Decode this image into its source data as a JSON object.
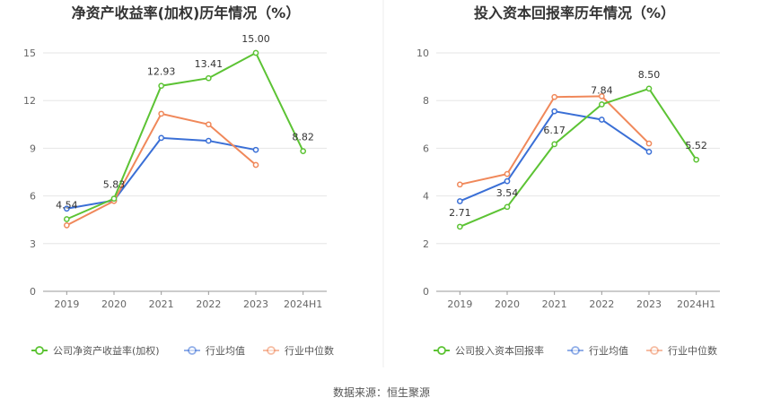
{
  "source_text": "数据来源：恒生聚源",
  "chart_data": [
    {
      "type": "line",
      "title": "净资产收益率(加权)历年情况（%）",
      "categories": [
        "2019",
        "2020",
        "2021",
        "2022",
        "2023",
        "2024H1"
      ],
      "ylim": [
        0,
        15
      ],
      "yticks": [
        0,
        3,
        6,
        9,
        12,
        15
      ],
      "grid": true,
      "legend_position": "bottom",
      "series": [
        {
          "name": "公司净资产收益率(加权)",
          "color": "#5cc334",
          "values": [
            4.54,
            5.83,
            12.93,
            13.41,
            15.0,
            8.82
          ],
          "labels": [
            "4.54",
            "5.83",
            "12.93",
            "13.41",
            "15.00",
            "8.82"
          ]
        },
        {
          "name": "行业均值",
          "color": "#3a6fd6",
          "values": [
            5.2,
            5.72,
            9.65,
            9.47,
            8.9,
            null
          ]
        },
        {
          "name": "行业中位数",
          "color": "#f0885a",
          "values": [
            4.15,
            5.68,
            11.17,
            10.5,
            7.95,
            null
          ]
        }
      ]
    },
    {
      "type": "line",
      "title": "投入资本回报率历年情况（%）",
      "categories": [
        "2019",
        "2020",
        "2021",
        "2022",
        "2023",
        "2024H1"
      ],
      "ylim": [
        0,
        10
      ],
      "yticks": [
        0,
        2,
        4,
        6,
        8,
        10
      ],
      "grid": true,
      "legend_position": "bottom",
      "series": [
        {
          "name": "公司投入资本回报率",
          "color": "#5cc334",
          "values": [
            2.71,
            3.54,
            6.17,
            7.84,
            8.5,
            5.52
          ],
          "labels": [
            "2.71",
            "3.54",
            "6.17",
            "7.84",
            "8.50",
            "5.52"
          ]
        },
        {
          "name": "行业均值",
          "color": "#3a6fd6",
          "values": [
            3.78,
            4.62,
            7.55,
            7.2,
            5.85,
            null
          ]
        },
        {
          "name": "行业中位数",
          "color": "#f0885a",
          "values": [
            4.48,
            4.92,
            8.15,
            8.18,
            6.2,
            null
          ]
        }
      ]
    }
  ]
}
